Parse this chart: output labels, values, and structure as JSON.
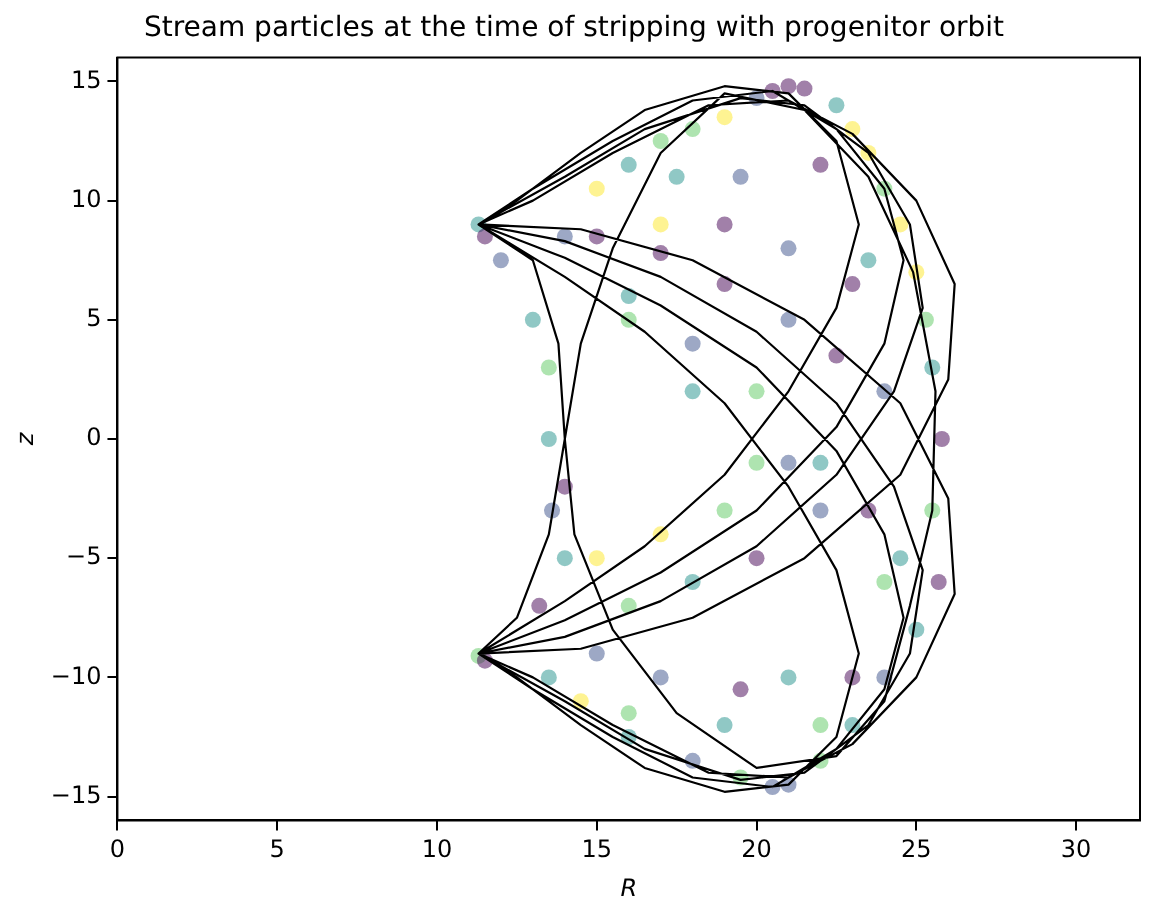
{
  "chart_data": {
    "type": "scatter",
    "title": "Stream particles at the time of stripping with progenitor orbit",
    "xlabel": "R",
    "ylabel": "z",
    "xlim": [
      0,
      32
    ],
    "xticks": [
      0,
      5,
      10,
      15,
      20,
      25,
      30
    ],
    "ylim": [
      -16,
      16
    ],
    "yticks": [
      -15,
      -10,
      -5,
      0,
      5,
      10,
      15
    ],
    "grid": false,
    "legend": false,
    "series": [
      {
        "type": "scatter",
        "marker": "circle",
        "x": [
          21,
          20.5,
          21.5,
          20,
          19,
          18,
          17,
          16,
          15,
          22.5,
          23,
          23.5,
          24,
          24.5,
          25,
          25.3,
          25.5,
          25.8,
          25.5,
          25.7,
          25,
          24,
          23,
          22,
          21,
          20.5,
          19.5,
          18,
          16,
          14.5,
          13.5,
          11.3,
          11.5,
          11.3,
          11.5,
          12,
          13,
          13.5,
          13.5,
          13.6,
          14,
          13.2,
          15,
          17,
          19,
          21,
          22.5,
          24,
          14,
          16,
          18,
          20,
          22,
          23.5,
          16,
          18,
          20,
          15,
          17,
          19,
          21,
          16,
          18,
          20,
          22,
          15,
          17,
          19.5,
          21,
          23,
          16,
          19,
          22,
          24,
          24.5,
          17,
          19.5,
          22,
          23.5,
          19,
          21,
          23,
          17.5,
          14
        ],
        "values": [
          14.8,
          14.6,
          14.7,
          14.3,
          13.5,
          13,
          12.5,
          11.5,
          10.5,
          14,
          13,
          12,
          10.5,
          9,
          7,
          5,
          3,
          0,
          -3,
          -6,
          -8,
          -10,
          -12,
          -13.5,
          -14.5,
          -14.6,
          -14.2,
          -13.5,
          -12.5,
          -11,
          -10,
          -9.1,
          -9.3,
          9,
          8.5,
          7.5,
          5,
          3,
          0,
          -3,
          -5,
          -7,
          8.5,
          7.8,
          6.5,
          5,
          3.5,
          2,
          8.5,
          6,
          4,
          2,
          -1,
          -3,
          5,
          2,
          -1,
          -5,
          -4,
          -3,
          -1,
          -7,
          -6,
          -5,
          -3,
          -9,
          -10,
          -10.5,
          -10,
          -10,
          -11.5,
          -12,
          -12,
          -6,
          -5,
          9,
          11,
          11.5,
          7.5,
          9,
          8,
          6.5,
          11,
          -2
        ],
        "colors": [
          "#440154",
          "#440154",
          "#440154",
          "#3b528b",
          "#fde725",
          "#5ec962",
          "#5ec962",
          "#21918c",
          "#fde725",
          "#21918c",
          "#fde725",
          "#fde725",
          "#5ec962",
          "#fde725",
          "#fde725",
          "#5ec962",
          "#21918c",
          "#440154",
          "#5ec962",
          "#440154",
          "#21918c",
          "#3b528b",
          "#21918c",
          "#5ec962",
          "#3b528b",
          "#3b528b",
          "#5ec962",
          "#3b528b",
          "#21918c",
          "#fde725",
          "#21918c",
          "#5ec962",
          "#440154",
          "#21918c",
          "#440154",
          "#3b528b",
          "#21918c",
          "#5ec962",
          "#21918c",
          "#3b528b",
          "#21918c",
          "#440154",
          "#440154",
          "#440154",
          "#440154",
          "#3b528b",
          "#440154",
          "#3b528b",
          "#3b528b",
          "#21918c",
          "#3b528b",
          "#5ec962",
          "#21918c",
          "#440154",
          "#5ec962",
          "#21918c",
          "#5ec962",
          "#fde725",
          "#fde725",
          "#5ec962",
          "#3b528b",
          "#5ec962",
          "#21918c",
          "#440154",
          "#3b528b",
          "#3b528b",
          "#3b528b",
          "#440154",
          "#21918c",
          "#440154",
          "#5ec962",
          "#21918c",
          "#5ec962",
          "#5ec962",
          "#21918c",
          "#fde725",
          "#3b528b",
          "#440154",
          "#21918c",
          "#440154",
          "#3b528b",
          "#440154",
          "#21918c",
          "#440154"
        ]
      },
      {
        "type": "line",
        "marker": "none",
        "color": "#000000",
        "x": [
          11.3,
          14,
          17,
          20,
          22.5,
          24.3,
          25.2,
          24.8,
          23.5,
          21.5,
          19.5,
          16.5,
          14,
          11.3,
          14,
          17,
          20,
          22.5,
          24.3,
          25.2,
          24.8,
          23.5,
          21.5,
          19.5,
          16.5,
          14,
          11.3,
          14,
          17,
          20,
          22.5,
          24,
          24.6,
          24,
          22.5,
          20.5,
          18,
          15.5,
          13,
          11.3,
          14,
          17,
          20,
          22.5,
          24,
          24.6,
          24,
          22.5,
          20.5,
          18,
          15.5,
          13,
          11.3,
          14,
          16.5,
          19,
          21,
          22.5,
          23.2,
          22.5,
          21,
          19,
          16.5,
          14.5,
          12.5,
          11.3,
          14,
          16.5,
          19,
          21,
          22.5,
          23.2,
          22.5,
          21,
          19,
          16.5,
          14.5,
          12.5,
          11.3,
          14.5,
          18,
          21.5,
          24.5,
          26,
          26.2,
          25,
          23,
          21,
          18.5,
          15.5,
          13,
          11.3,
          14.5,
          18,
          21.5,
          24.5,
          26,
          26.2,
          25,
          23,
          21,
          18.5,
          15.5,
          13,
          11.3,
          13,
          13.8,
          14,
          14.3,
          15.5,
          17.5,
          20,
          22.5,
          24,
          24.8,
          25.5,
          25.6,
          24.9,
          23.5,
          21.5,
          19,
          17,
          15.5,
          14.5,
          14,
          13.5,
          12.5,
          11.3
        ],
        "values": [
          9,
          8.3,
          6.8,
          4.5,
          1.5,
          -2,
          -5.5,
          -9,
          -12,
          -14,
          -14.3,
          -13,
          -11,
          -9,
          -8.3,
          -6.8,
          -4.5,
          -1.5,
          2,
          5.5,
          9,
          12,
          14,
          14.3,
          13,
          11,
          9,
          7.6,
          5.6,
          3,
          -0.5,
          -4,
          -7.5,
          -10.5,
          -13,
          -14.6,
          -14.2,
          -12.5,
          -10.5,
          -9,
          -7.6,
          -5.6,
          -3,
          0.5,
          4,
          7.5,
          10.5,
          13,
          14.6,
          14.2,
          12.5,
          10.5,
          9,
          6.8,
          4.5,
          1.5,
          -2,
          -5.5,
          -9,
          -12.5,
          -14.5,
          -14.8,
          -13.8,
          -12,
          -10,
          -9,
          -6.8,
          -4.5,
          -1.5,
          2,
          5.5,
          9,
          12.5,
          14.5,
          14.8,
          13.8,
          12,
          10,
          9,
          8.8,
          7.5,
          5,
          1.5,
          -2.5,
          -6.5,
          -10,
          -12.8,
          -14.2,
          -14,
          -12,
          -10,
          -9,
          -8.8,
          -7.5,
          -5,
          -1.5,
          2.5,
          6.5,
          10,
          12.8,
          14.2,
          14,
          12,
          10,
          9,
          7.5,
          4,
          0,
          -4,
          -8,
          -11.5,
          -13.8,
          -13.3,
          -11,
          -7,
          -3,
          2,
          7,
          11,
          13.8,
          14.5,
          12,
          8,
          4,
          0,
          -4,
          -7.5,
          -9
        ]
      }
    ]
  }
}
